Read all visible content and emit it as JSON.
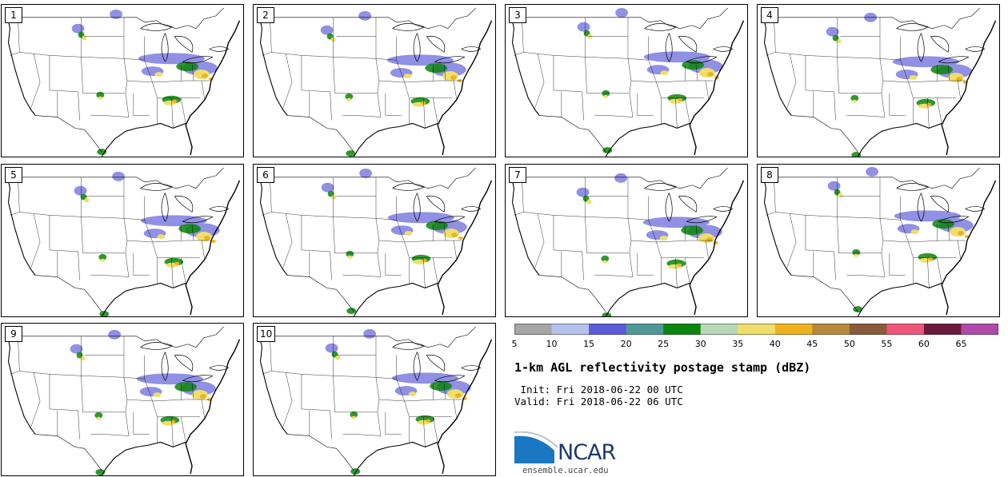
{
  "figure": {
    "title": "1-km AGL reflectivity postage stamp (dBZ)",
    "init_label": " Init:",
    "init_value": "Fri 2018-06-22 00 UTC",
    "valid_label": "Valid:",
    "valid_value": "Fri 2018-06-22 06 UTC"
  },
  "panels": [
    {
      "member": "1"
    },
    {
      "member": "2"
    },
    {
      "member": "3"
    },
    {
      "member": "4"
    },
    {
      "member": "5"
    },
    {
      "member": "6"
    },
    {
      "member": "7"
    },
    {
      "member": "8"
    },
    {
      "member": "9"
    },
    {
      "member": "10"
    }
  ],
  "colorbar": {
    "ticks": [
      "5",
      "10",
      "15",
      "20",
      "25",
      "30",
      "35",
      "40",
      "45",
      "50",
      "55",
      "60",
      "65"
    ],
    "colors": [
      "#a6a6a6",
      "#b5c1ea",
      "#5a5ad9",
      "#4f9898",
      "#0c850c",
      "#b7d9b7",
      "#efdf6a",
      "#efb21f",
      "#b8873b",
      "#8a5a3a",
      "#f0557a",
      "#6c1a3a",
      "#b04aaa"
    ]
  },
  "branding": {
    "logo_text": "NCAR",
    "url": "ensemble.ucar.edu"
  }
}
